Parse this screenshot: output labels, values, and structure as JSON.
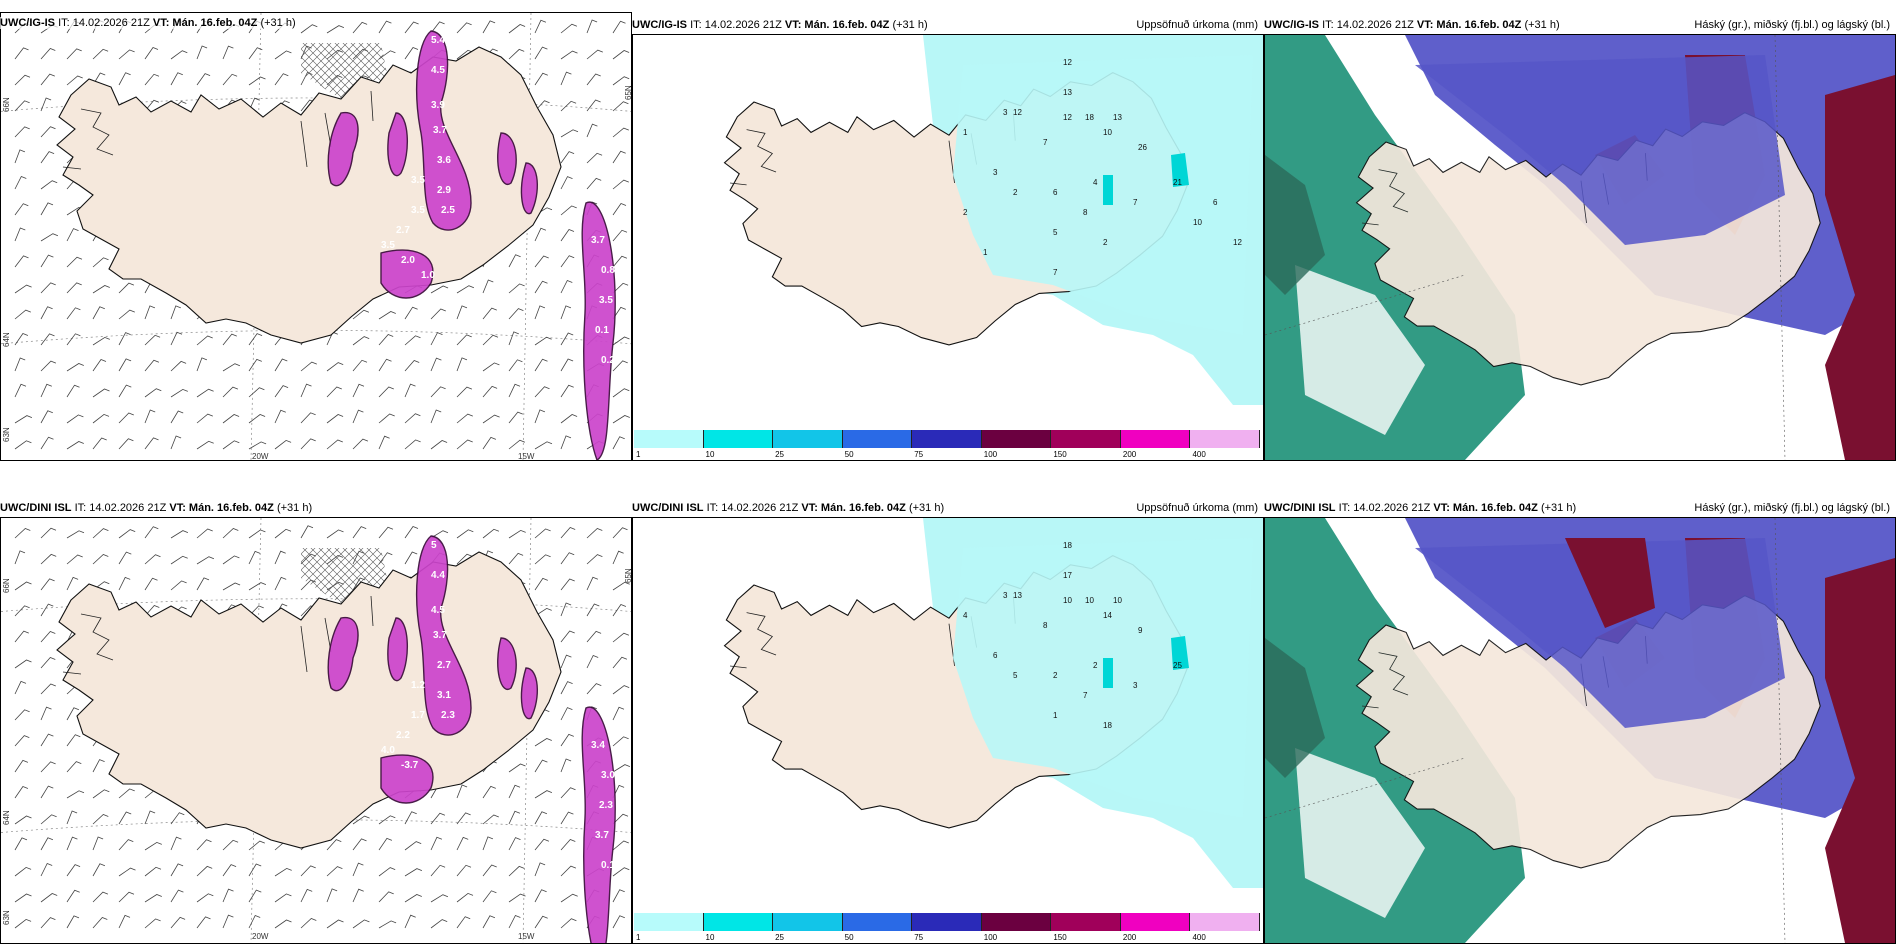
{
  "rows": [
    {
      "model": "UWC/IG-IS",
      "panels": [
        {
          "model": "UWC/IG-IS",
          "it": "IT: 14.02.2026 21Z",
          "vt": "VT: Mán. 16.feb. 04Z",
          "lead": "(+31 h)",
          "right_title": ""
        },
        {
          "model": "UWC/IG-IS",
          "it": "IT: 14.02.2026 21Z",
          "vt": "VT: Mán. 16.feb. 04Z",
          "lead": "(+31 h)",
          "right_title": "Uppsöfnuð úrkoma (mm)"
        },
        {
          "model": "UWC/IG-IS",
          "it": "IT: 14.02.2026 21Z",
          "vt": "VT: Mán. 16.feb. 04Z",
          "lead": "(+31 h)",
          "right_title": "Háský (gr.), miðský (fj.bl.) og lágský (bl.)"
        }
      ],
      "wind_labels": [
        "5.4",
        "4.5",
        "3.9",
        "3.7",
        "3.6",
        "3.5",
        "2.9",
        "2.5",
        "3.5",
        "2.7",
        "3.5",
        "3.7",
        "0.8",
        "3.5",
        "0.1",
        "0.2",
        "2.0",
        "1.0"
      ],
      "precip_labels": [
        "12",
        "13",
        "12",
        "18",
        "13",
        "26",
        "21",
        "2",
        "10",
        "12",
        "7",
        "3",
        "1",
        "6",
        "2",
        "3",
        "8",
        "4",
        "5",
        "7",
        "10",
        "6",
        "12",
        "7",
        "1",
        "2"
      ]
    },
    {
      "model": "UWC/DINI ISL",
      "panels": [
        {
          "model": "UWC/DINI ISL",
          "it": "IT: 14.02.2026 21Z",
          "vt": "VT: Mán. 16.feb. 04Z",
          "lead": "(+31 h)",
          "right_title": ""
        },
        {
          "model": "UWC/DINI ISL",
          "it": "IT: 14.02.2026 21Z",
          "vt": "VT: Mán. 16.feb. 04Z",
          "lead": "(+31 h)",
          "right_title": "Uppsöfnuð úrkoma (mm)"
        },
        {
          "model": "UWC/DINI ISL",
          "it": "IT: 14.02.2026 21Z",
          "vt": "VT: Mán. 16.feb. 04Z",
          "lead": "(+31 h)",
          "right_title": "Háský (gr.), miðský (fj.bl.) og lágský (bl.)"
        }
      ],
      "wind_labels": [
        "5",
        "4.4",
        "4.5",
        "3.7",
        "2.7",
        "1.2",
        "3.1",
        "2.3",
        "1.7",
        "2.2",
        "4.0",
        "3.4",
        "3.0",
        "2.3",
        "3.7",
        "0.1",
        "-3.7"
      ],
      "precip_labels": [
        "18",
        "17",
        "10",
        "10",
        "10",
        "9",
        "25",
        "18",
        "14",
        "13",
        "8",
        "3",
        "4",
        "2",
        "5",
        "6",
        "7",
        "2",
        "1",
        "3"
      ]
    }
  ],
  "axis": {
    "lon_labels": [
      "20W",
      "15W"
    ],
    "lat_labels": [
      "66N",
      "64N",
      "65N",
      "63N"
    ]
  },
  "colorbar": {
    "ticks": [
      "1",
      "10",
      "25",
      "50",
      "75",
      "100",
      "150",
      "200",
      "400"
    ],
    "colors": [
      "#b7fbfb",
      "#00e6e6",
      "#12c5e8",
      "#2a6ae6",
      "#2a2ab8",
      "#6b0040",
      "#a0005a",
      "#f000c0",
      "#f0b0f0"
    ]
  },
  "colors": {
    "land": "#f5e8dc",
    "sea_precip": "#b8f7f7",
    "cloud_high": "#0e8a6e",
    "cloud_mid": "#5656c8",
    "cloud_low": "#7a1030",
    "wind_magenta": "#cc44cc",
    "hatch": "#555555"
  }
}
